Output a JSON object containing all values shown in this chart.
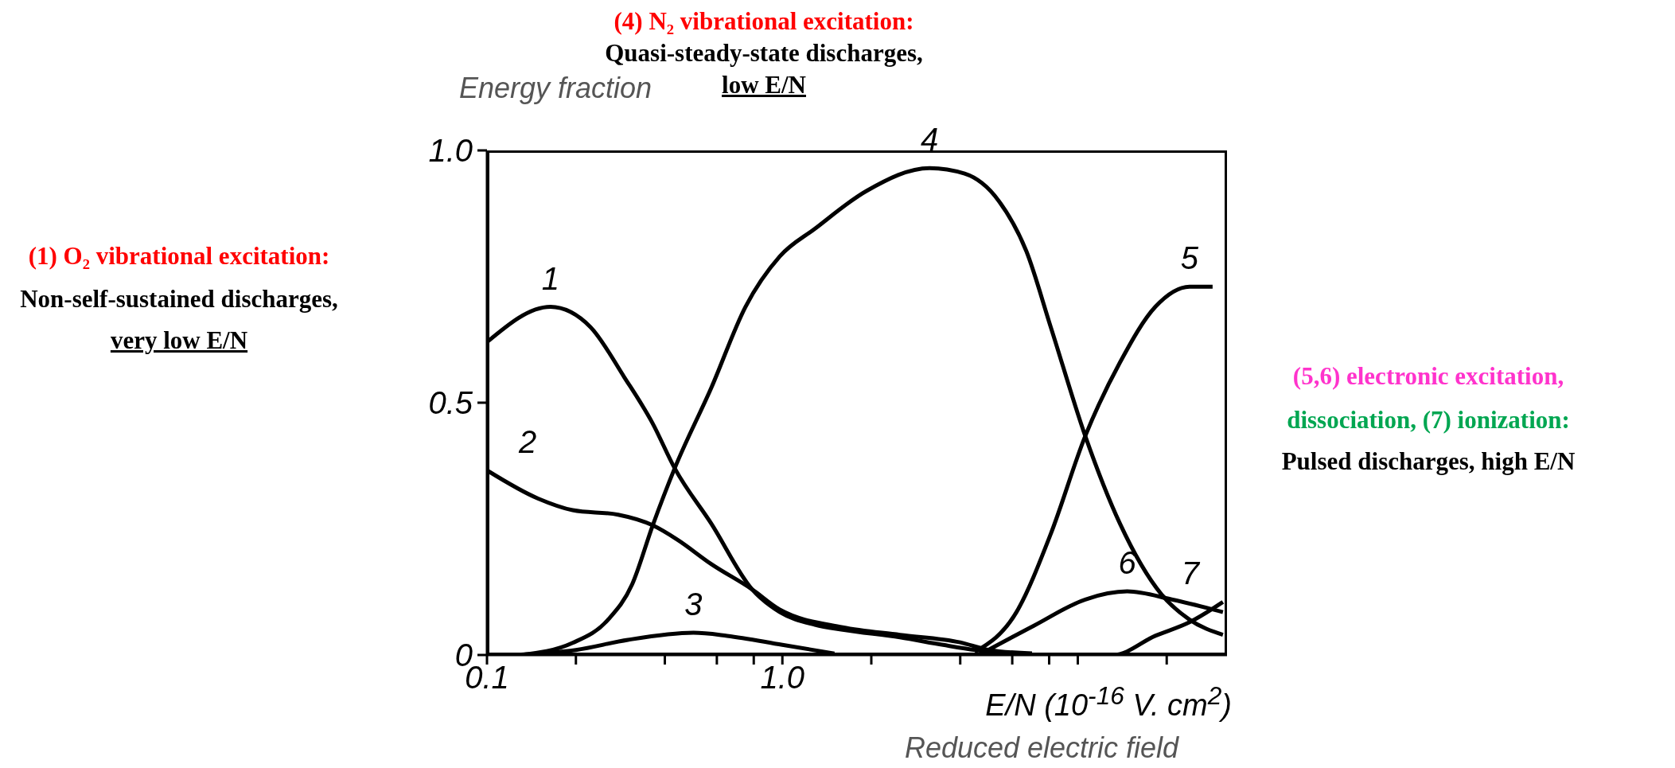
{
  "chart_data": {
    "type": "line",
    "ylabel": "Energy fraction",
    "xlabel": "E/N (10$^{-16}$ V. cm$^{2}$)",
    "log": "x",
    "grid": false,
    "legend": false,
    "marker": "none",
    "line_style": "solid",
    "xlim": [
      0.1,
      32
    ],
    "ylim": [
      0,
      1
    ],
    "xticks": [
      {
        "value": 0.1,
        "label": "0.1"
      },
      {
        "value": 0.2,
        "label": null
      },
      {
        "value": 0.4,
        "label": null
      },
      {
        "value": 0.6,
        "label": null
      },
      {
        "value": 0.8,
        "label": null
      },
      {
        "value": 1,
        "label": "1.0"
      },
      {
        "value": 2,
        "label": null
      },
      {
        "value": 4,
        "label": null
      },
      {
        "value": 6,
        "label": null
      },
      {
        "value": 8,
        "label": null
      },
      {
        "value": 10,
        "label": null
      },
      {
        "value": 20,
        "label": null
      }
    ],
    "yticks": [
      0,
      {
        "value": 0.5,
        "label": "0.5"
      },
      {
        "value": 1,
        "label": "1.0"
      }
    ],
    "series": [
      {
        "name": "1",
        "color": "#000000",
        "x": [
          0.1,
          0.164,
          0.224,
          0.292,
          0.363,
          0.432,
          0.575,
          0.79,
          0.98,
          1.29,
          1.6,
          2.5,
          3.5,
          4.5,
          6
        ],
        "values": [
          0.62,
          0.69,
          0.65,
          0.55,
          0.46,
          0.37,
          0.26,
          0.13,
          0.085,
          0.06,
          0.05,
          0.035,
          0.02,
          0.01,
          0.003
        ]
      },
      {
        "name": "2",
        "color": "#000000",
        "x": [
          0.1,
          0.149,
          0.195,
          0.278,
          0.364,
          0.44,
          0.575,
          0.79,
          0.98,
          1.6,
          2.5,
          4,
          5,
          7
        ],
        "values": [
          0.366,
          0.31,
          0.287,
          0.278,
          0.257,
          0.229,
          0.18,
          0.13,
          0.09,
          0.055,
          0.04,
          0.025,
          0.01,
          0.003
        ]
      },
      {
        "name": "3",
        "color": "#000000",
        "x": [
          0.12,
          0.2,
          0.3,
          0.5,
          0.65,
          1,
          1.5
        ],
        "values": [
          0,
          0.01,
          0.03,
          0.044,
          0.038,
          0.02,
          0.003
        ]
      },
      {
        "name": "4",
        "color": "#000000",
        "x": [
          0.13,
          0.195,
          0.257,
          0.31,
          0.364,
          0.432,
          0.575,
          0.75,
          0.98,
          1.29,
          1.93,
          3.15,
          4.14,
          5.4,
          6.7,
          8.1,
          10.6,
          13.9,
          19.2,
          23.9,
          31
        ],
        "values": [
          0,
          0.024,
          0.07,
          0.14,
          0.257,
          0.37,
          0.53,
          0.69,
          0.79,
          0.845,
          0.92,
          0.965,
          0.954,
          0.9,
          0.8,
          0.65,
          0.434,
          0.26,
          0.12,
          0.07,
          0.04
        ]
      },
      {
        "name": "5",
        "color": "#000000",
        "x": [
          4.48,
          6.2,
          8.1,
          10.6,
          13.9,
          18.3,
          23.9,
          28.6
        ],
        "values": [
          0.006,
          0.085,
          0.24,
          0.434,
          0.58,
          0.69,
          0.73,
          0.73
        ]
      },
      {
        "name": "6",
        "color": "#000000",
        "x": [
          4.8,
          7.1,
          10.6,
          14.7,
          20.8,
          31
        ],
        "values": [
          0.005,
          0.058,
          0.11,
          0.126,
          0.11,
          0.085
        ]
      },
      {
        "name": "7",
        "color": "#000000",
        "x": [
          5,
          13.2,
          18.3,
          23.9,
          31
        ],
        "values": [
          0,
          0,
          0.038,
          0.065,
          0.105
        ]
      }
    ],
    "annotations": [
      "(1) O₂ vibrational excitation:",
      "Non-self-sustained discharges,",
      "very low E/N",
      "(4) N₂ vibrational excitation:",
      "Quasi-steady-state discharges,",
      "low E/N",
      "(5,6) electronic excitation,",
      "dissociation, (7) ionization:",
      "Pulsed discharges, high E/N",
      "Reduced electric field"
    ]
  }
}
